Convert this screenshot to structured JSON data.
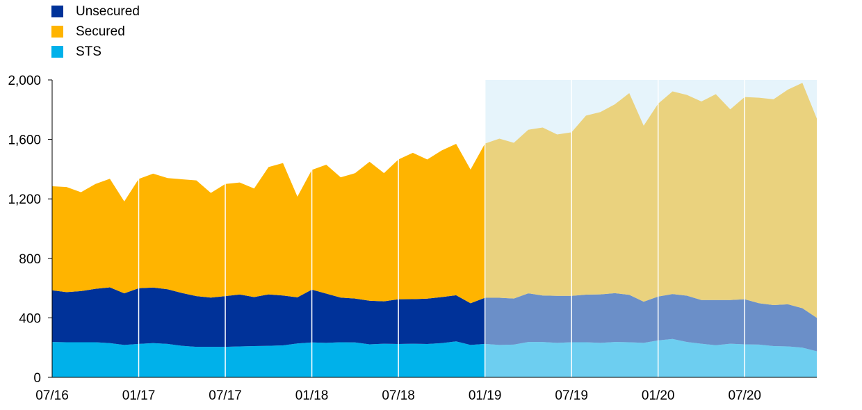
{
  "chart_data": {
    "type": "area",
    "stacked": true,
    "title": "",
    "xlabel": "",
    "ylabel": "",
    "ylim": [
      0,
      2000
    ],
    "y_ticks": [
      0,
      400,
      800,
      1200,
      1600,
      2000
    ],
    "y_tick_labels": [
      "0",
      "400",
      "800",
      "1,200",
      "1,600",
      "2,000"
    ],
    "x_tick_labels": [
      "07/16",
      "01/17",
      "07/17",
      "01/18",
      "07/18",
      "01/19",
      "07/19",
      "01/20",
      "07/20"
    ],
    "x_tick_months": [
      "2016-07",
      "2017-01",
      "2017-07",
      "2018-01",
      "2018-07",
      "2019-01",
      "2019-07",
      "2020-01",
      "2020-07"
    ],
    "x": [
      "2016-07",
      "2016-08",
      "2016-09",
      "2016-10",
      "2016-11",
      "2016-12",
      "2017-01",
      "2017-02",
      "2017-03",
      "2017-04",
      "2017-05",
      "2017-06",
      "2017-07",
      "2017-08",
      "2017-09",
      "2017-10",
      "2017-11",
      "2017-12",
      "2018-01",
      "2018-02",
      "2018-03",
      "2018-04",
      "2018-05",
      "2018-06",
      "2018-07",
      "2018-08",
      "2018-09",
      "2018-10",
      "2018-11",
      "2018-12",
      "2019-01",
      "2019-02",
      "2019-03",
      "2019-04",
      "2019-05",
      "2019-06",
      "2019-07",
      "2019-08",
      "2019-09",
      "2019-10",
      "2019-11",
      "2019-12",
      "2020-01",
      "2020-02",
      "2020-03",
      "2020-04",
      "2020-05",
      "2020-06",
      "2020-07",
      "2020-08",
      "2020-09",
      "2020-10",
      "2020-11",
      "2020-12"
    ],
    "highlight_from": "2019-01",
    "grid": "vertical",
    "legend_position": "top-left",
    "series": [
      {
        "name": "STS",
        "color": "#00b1ea",
        "faded_color": "#6dcef0",
        "values": [
          238,
          236,
          236,
          236,
          230,
          218,
          225,
          230,
          225,
          212,
          205,
          205,
          205,
          208,
          210,
          212,
          215,
          228,
          235,
          232,
          236,
          235,
          222,
          226,
          224,
          226,
          224,
          230,
          242,
          218,
          225,
          218,
          220,
          238,
          238,
          232,
          236,
          236,
          232,
          238,
          236,
          232,
          248,
          258,
          238,
          226,
          216,
          226,
          222,
          220,
          210,
          208,
          200,
          175
        ]
      },
      {
        "name": "Unsecured",
        "color": "#003299",
        "faded_color": "#6b8fc8",
        "values": [
          347,
          337,
          344,
          359,
          375,
          347,
          374,
          374,
          367,
          355,
          341,
          331,
          341,
          349,
          330,
          346,
          335,
          310,
          355,
          331,
          300,
          295,
          293,
          285,
          301,
          300,
          305,
          310,
          310,
          280,
          310,
          317,
          310,
          327,
          312,
          316,
          312,
          320,
          326,
          328,
          319,
          277,
          295,
          302,
          311,
          294,
          304,
          294,
          303,
          278,
          276,
          283,
          265,
          225
        ]
      },
      {
        "name": "Secured",
        "color": "#ffb400",
        "faded_color": "#ead27e",
        "values": [
          700,
          707,
          665,
          705,
          730,
          618,
          735,
          766,
          748,
          765,
          778,
          704,
          754,
          753,
          730,
          856,
          891,
          677,
          805,
          867,
          809,
          843,
          935,
          862,
          940,
          984,
          936,
          986,
          1018,
          899,
          1037,
          1070,
          1047,
          1100,
          1130,
          1085,
          1100,
          1204,
          1226,
          1270,
          1356,
          1183,
          1297,
          1363,
          1350,
          1335,
          1384,
          1282,
          1360,
          1382,
          1384,
          1444,
          1515,
          1340
        ]
      }
    ]
  },
  "legend": {
    "items": [
      {
        "label": "Unsecured",
        "color": "#003299"
      },
      {
        "label": "Secured",
        "color": "#ffb400"
      },
      {
        "label": "STS",
        "color": "#00b1ea"
      }
    ]
  }
}
